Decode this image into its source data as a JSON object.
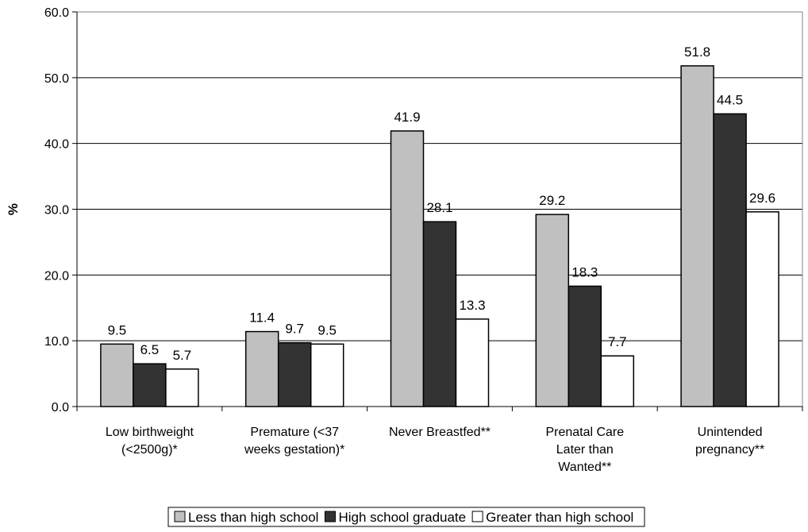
{
  "chart_data": {
    "type": "bar",
    "ylabel": "%",
    "ylim": [
      0,
      60
    ],
    "yticks": [
      "0.0",
      "10.0",
      "20.0",
      "30.0",
      "40.0",
      "50.0",
      "60.0"
    ],
    "grid": true,
    "legend_position": "bottom",
    "categories": [
      [
        "Low birthweight",
        "(<2500g)*"
      ],
      [
        "Premature (<37",
        "weeks gestation)*"
      ],
      [
        "Never Breastfed**"
      ],
      [
        "Prenatal Care",
        "Later than",
        "Wanted**"
      ],
      [
        "Unintended",
        "pregnancy**"
      ]
    ],
    "series": [
      {
        "name": "Less than high school",
        "color": "#c0c0c0",
        "values": [
          9.5,
          11.4,
          41.9,
          29.2,
          51.8
        ]
      },
      {
        "name": "High school graduate",
        "color": "#333333",
        "values": [
          6.5,
          9.7,
          28.1,
          18.3,
          44.5
        ]
      },
      {
        "name": "Greater than high school",
        "color": "#ffffff",
        "values": [
          5.7,
          9.5,
          13.3,
          7.7,
          29.6
        ]
      }
    ]
  }
}
